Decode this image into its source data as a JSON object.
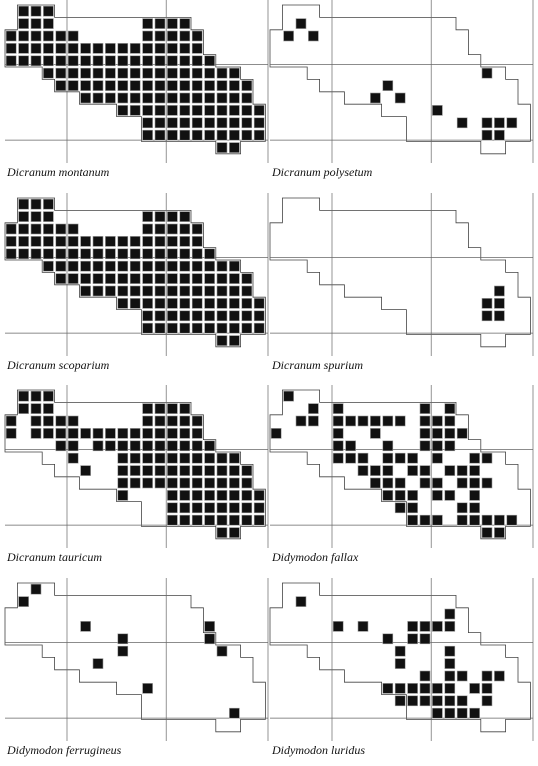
{
  "maps": [
    {
      "label": "Dicranum montanum",
      "squares": [
        [
          0,
          1,
          3
        ],
        [
          1,
          1,
          3
        ],
        [
          1,
          11,
          14
        ],
        [
          2,
          0,
          5
        ],
        [
          2,
          11,
          15
        ],
        [
          3,
          0,
          15
        ],
        [
          4,
          0,
          16
        ],
        [
          5,
          3,
          18
        ],
        [
          6,
          4,
          19
        ],
        [
          7,
          6,
          19
        ],
        [
          8,
          9,
          20
        ],
        [
          9,
          11,
          20
        ],
        [
          10,
          11,
          20
        ],
        [
          11,
          17,
          18
        ]
      ]
    },
    {
      "label": "Dicranum polysetum",
      "squares": [
        [
          1,
          2,
          2
        ],
        [
          2,
          1,
          1
        ],
        [
          2,
          3,
          3
        ],
        [
          5,
          17,
          17
        ],
        [
          6,
          9,
          9
        ],
        [
          7,
          8,
          8
        ],
        [
          7,
          10,
          10
        ],
        [
          8,
          13,
          13
        ],
        [
          9,
          15,
          15
        ],
        [
          9,
          17,
          19
        ],
        [
          10,
          17,
          18
        ]
      ]
    },
    {
      "label": "Dicranum scoparium",
      "squares": [
        [
          0,
          1,
          3
        ],
        [
          1,
          1,
          3
        ],
        [
          1,
          11,
          14
        ],
        [
          2,
          0,
          5
        ],
        [
          2,
          11,
          15
        ],
        [
          3,
          0,
          15
        ],
        [
          4,
          0,
          16
        ],
        [
          5,
          3,
          18
        ],
        [
          6,
          4,
          19
        ],
        [
          7,
          6,
          19
        ],
        [
          8,
          9,
          20
        ],
        [
          9,
          11,
          20
        ],
        [
          10,
          11,
          20
        ],
        [
          11,
          17,
          18
        ]
      ]
    },
    {
      "label": "Dicranum spurium",
      "squares": [
        [
          7,
          18,
          18
        ],
        [
          8,
          17,
          18
        ],
        [
          9,
          17,
          18
        ]
      ]
    },
    {
      "label": "Dicranum tauricum",
      "squares": [
        [
          0,
          1,
          3
        ],
        [
          1,
          1,
          3
        ],
        [
          1,
          11,
          14
        ],
        [
          2,
          0,
          0
        ],
        [
          2,
          2,
          5
        ],
        [
          2,
          11,
          15
        ],
        [
          3,
          0,
          0
        ],
        [
          3,
          2,
          15
        ],
        [
          4,
          4,
          5
        ],
        [
          4,
          7,
          16
        ],
        [
          5,
          5,
          5
        ],
        [
          5,
          9,
          18
        ],
        [
          6,
          6,
          6
        ],
        [
          6,
          9,
          19
        ],
        [
          7,
          9,
          19
        ],
        [
          8,
          9,
          9
        ],
        [
          8,
          13,
          20
        ],
        [
          9,
          13,
          20
        ],
        [
          10,
          13,
          20
        ],
        [
          11,
          17,
          18
        ]
      ]
    },
    {
      "label": "Didymodon fallax",
      "squares": [
        [
          0,
          1,
          1
        ],
        [
          1,
          3,
          3
        ],
        [
          1,
          5,
          5
        ],
        [
          1,
          12,
          12
        ],
        [
          1,
          14,
          14
        ],
        [
          2,
          2,
          3
        ],
        [
          2,
          5,
          10
        ],
        [
          2,
          12,
          14
        ],
        [
          3,
          0,
          0
        ],
        [
          3,
          5,
          5
        ],
        [
          3,
          8,
          8
        ],
        [
          3,
          12,
          15
        ],
        [
          4,
          5,
          6
        ],
        [
          4,
          9,
          9
        ],
        [
          4,
          12,
          14
        ],
        [
          5,
          5,
          7
        ],
        [
          5,
          9,
          11
        ],
        [
          5,
          13,
          13
        ],
        [
          5,
          16,
          17
        ],
        [
          6,
          7,
          9
        ],
        [
          6,
          11,
          12
        ],
        [
          6,
          14,
          16
        ],
        [
          7,
          8,
          10
        ],
        [
          7,
          12,
          13
        ],
        [
          7,
          15,
          17
        ],
        [
          8,
          9,
          11
        ],
        [
          8,
          13,
          14
        ],
        [
          8,
          16,
          16
        ],
        [
          9,
          10,
          11
        ],
        [
          9,
          15,
          16
        ],
        [
          10,
          11,
          13
        ],
        [
          10,
          15,
          19
        ],
        [
          11,
          17,
          18
        ]
      ]
    },
    {
      "label": "Didymodon ferrugineus",
      "squares": [
        [
          0,
          2,
          2
        ],
        [
          1,
          1,
          1
        ],
        [
          3,
          6,
          6
        ],
        [
          3,
          16,
          16
        ],
        [
          4,
          9,
          9
        ],
        [
          4,
          16,
          16
        ],
        [
          5,
          9,
          9
        ],
        [
          5,
          17,
          17
        ],
        [
          6,
          7,
          7
        ],
        [
          8,
          11,
          11
        ],
        [
          10,
          18,
          18
        ]
      ]
    },
    {
      "label": "Didymodon luridus",
      "squares": [
        [
          1,
          2,
          2
        ],
        [
          2,
          14,
          14
        ],
        [
          3,
          5,
          5
        ],
        [
          3,
          7,
          7
        ],
        [
          3,
          11,
          14
        ],
        [
          4,
          9,
          9
        ],
        [
          4,
          11,
          12
        ],
        [
          5,
          10,
          10
        ],
        [
          5,
          14,
          14
        ],
        [
          6,
          10,
          10
        ],
        [
          6,
          14,
          14
        ],
        [
          7,
          12,
          12
        ],
        [
          7,
          14,
          15
        ],
        [
          7,
          17,
          18
        ],
        [
          8,
          9,
          14
        ],
        [
          8,
          16,
          17
        ],
        [
          9,
          10,
          15
        ],
        [
          9,
          17,
          17
        ],
        [
          10,
          13,
          16
        ]
      ]
    }
  ]
}
